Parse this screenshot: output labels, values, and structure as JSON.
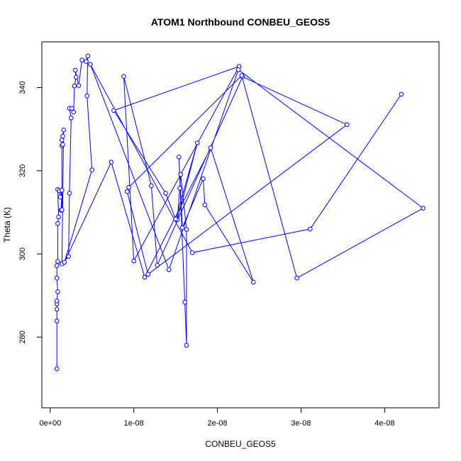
{
  "chart_data": {
    "type": "line",
    "title": "ATOM1 Northbound CONBEU_GEOS5",
    "xlabel": "CONBEU_GEOS5",
    "ylabel": "Theta (K)",
    "xlim": [
      -1e-09,
      4.65e-08
    ],
    "ylim": [
      263,
      351
    ],
    "x_ticks": [
      0,
      1e-08,
      2e-08,
      3e-08,
      4e-08
    ],
    "x_tick_labels": [
      "0e+00",
      "1e-08",
      "2e-08",
      "3e-08",
      "4e-08"
    ],
    "y_ticks": [
      280,
      300,
      320,
      340
    ],
    "y_tick_labels": [
      "280",
      "300",
      "320",
      "340"
    ],
    "color": "#0000ff",
    "marker": "open-circle",
    "grid": false,
    "series": [
      {
        "points": [
          [
            8e-10,
            272.4
          ],
          [
            8e-10,
            283.9
          ],
          [
            8e-10,
            286.7
          ],
          [
            8e-10,
            288.0
          ],
          [
            8e-10,
            288.7
          ],
          [
            9e-10,
            290.9
          ],
          [
            8e-10,
            294.2
          ],
          [
            8e-10,
            297.2
          ],
          [
            9e-10,
            298.2
          ],
          [
            9e-10,
            307.3
          ],
          [
            1e-09,
            308.9
          ],
          [
            9e-10,
            315.5
          ],
          [
            1.1e-09,
            315.2
          ],
          [
            1.2e-09,
            313.7
          ],
          [
            1.4e-09,
            315.3
          ],
          [
            1.3e-09,
            310.5
          ],
          [
            1.4e-09,
            310.6
          ],
          [
            1.4e-09,
            326.0
          ],
          [
            1.5e-09,
            326.3
          ],
          [
            1.4e-09,
            327.4
          ],
          [
            1.5e-09,
            328.3
          ],
          [
            1.6e-09,
            329.8
          ],
          [
            1.4e-09,
            297.6
          ],
          [
            2.2e-09,
            299.4
          ],
          [
            2.3e-09,
            314.6
          ],
          [
            2.5e-09,
            332.7
          ],
          [
            2.3e-09,
            335.0
          ],
          [
            2.6e-09,
            335.0
          ],
          [
            2.8e-09,
            334.1
          ],
          [
            2.9e-09,
            340.4
          ],
          [
            3.1e-09,
            342.5
          ],
          [
            3e-09,
            344.2
          ],
          [
            3.4e-09,
            340.5
          ],
          [
            3.8e-09,
            346.6
          ],
          [
            4.3e-09,
            346.3
          ],
          [
            4.5e-09,
            347.6
          ],
          [
            4.4e-09,
            338.0
          ],
          [
            5e-09,
            320.2
          ],
          [
            1.7e-09,
            298.0
          ],
          [
            7.3e-09,
            322.1
          ],
          [
            1.13e-08,
            294.4
          ],
          [
            1.92e-08,
            325.5
          ],
          [
            2.43e-08,
            293.2
          ],
          [
            1.85e-08,
            311.8
          ],
          [
            1.83e-08,
            318.1
          ],
          [
            1.58e-08,
            306.3
          ],
          [
            1.54e-08,
            323.3
          ],
          [
            1.61e-08,
            288.4
          ],
          [
            1.63e-08,
            278.0
          ],
          [
            1.63e-08,
            305.9
          ],
          [
            1.56e-08,
            319.1
          ],
          [
            1.55e-08,
            315.8
          ],
          [
            1.52e-08,
            308.2
          ],
          [
            1.76e-08,
            326.7
          ],
          [
            1.5e-08,
            308.4
          ],
          [
            1.38e-08,
            314.6
          ],
          [
            7.6e-09,
            334.5
          ],
          [
            2.26e-08,
            345.1
          ],
          [
            1e-08,
            298.3
          ],
          [
            8.8e-09,
            342.7
          ],
          [
            1.21e-08,
            316.4
          ],
          [
            1.28e-08,
            297.3
          ],
          [
            2.3e-08,
            342.6
          ],
          [
            3.55e-08,
            331.1
          ],
          [
            1.17e-08,
            295.1
          ],
          [
            9.2e-09,
            315.0
          ],
          [
            9.4e-09,
            316.0
          ],
          [
            2.29e-08,
            342.9
          ],
          [
            2.95e-08,
            294.2
          ],
          [
            4.46e-08,
            311.0
          ],
          [
            2.25e-08,
            344.3
          ],
          [
            1.42e-08,
            296.2
          ],
          [
            4.8e-09,
            345.6
          ],
          [
            1.7e-08,
            300.3
          ],
          [
            3.11e-08,
            306.0
          ],
          [
            4.2e-08,
            338.4
          ]
        ]
      }
    ]
  }
}
